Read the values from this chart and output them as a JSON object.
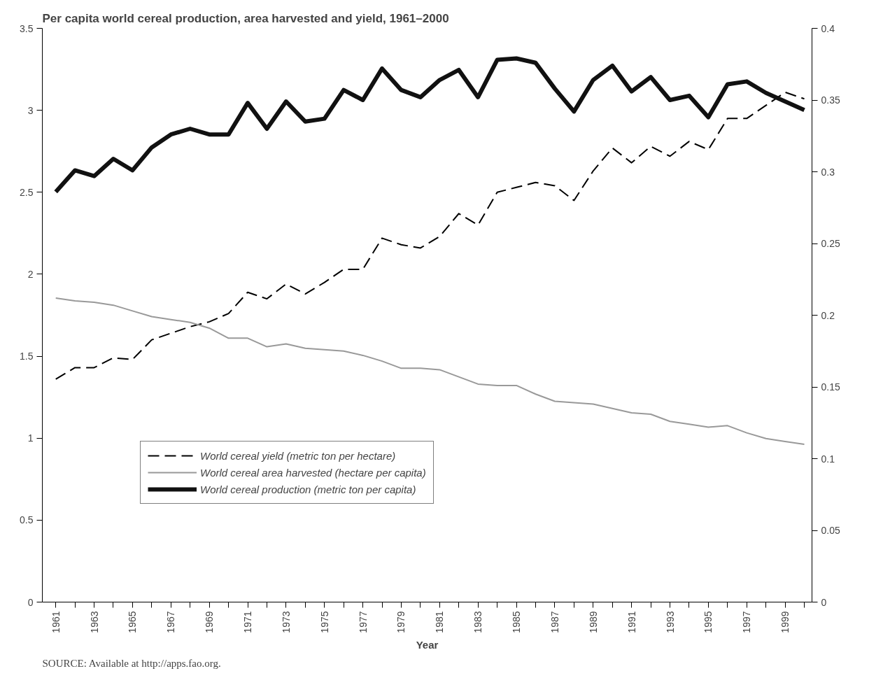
{
  "chart_data": {
    "type": "line",
    "title": "Per capita world cereal production, area harvested and yield, 1961–2000",
    "xlabel": "Year",
    "x": [
      1961,
      1962,
      1963,
      1964,
      1965,
      1966,
      1967,
      1968,
      1969,
      1970,
      1971,
      1972,
      1973,
      1974,
      1975,
      1976,
      1977,
      1978,
      1979,
      1980,
      1981,
      1982,
      1983,
      1984,
      1985,
      1986,
      1987,
      1988,
      1989,
      1990,
      1991,
      1992,
      1993,
      1994,
      1995,
      1996,
      1997,
      1998,
      1999,
      2000
    ],
    "series": [
      {
        "name": "World cereal yield (metric ton per hectare)",
        "color": "#000000",
        "line_style": "dashed",
        "values": [
          1.36,
          1.43,
          1.43,
          1.49,
          1.48,
          1.6,
          1.64,
          1.68,
          1.71,
          1.76,
          1.89,
          1.85,
          1.94,
          1.88,
          1.95,
          2.03,
          2.03,
          2.22,
          2.18,
          2.16,
          2.23,
          2.37,
          2.3,
          2.5,
          2.53,
          2.56,
          2.54,
          2.45,
          2.63,
          2.77,
          2.68,
          2.78,
          2.72,
          2.81,
          2.76,
          2.95,
          2.95,
          3.03,
          3.11,
          3.07
        ]
      },
      {
        "name": "World cereal area harvested (hectare per capita)",
        "color": "#999999",
        "line_style": "solid",
        "axis": "y2",
        "values": [
          0.212,
          0.21,
          0.209,
          0.207,
          0.203,
          0.199,
          0.197,
          0.195,
          0.191,
          0.184,
          0.184,
          0.178,
          0.18,
          0.177,
          0.176,
          0.175,
          0.172,
          0.168,
          0.163,
          0.163,
          0.162,
          0.157,
          0.152,
          0.151,
          0.151,
          0.145,
          0.14,
          0.139,
          0.138,
          0.135,
          0.132,
          0.131,
          0.126,
          0.124,
          0.122,
          0.123,
          0.118,
          0.114,
          0.112,
          0.11
        ]
      },
      {
        "name": "World cereal production (metric ton per capita)",
        "color": "#111111",
        "line_style": "solid",
        "axis": "y2",
        "values": [
          0.286,
          0.301,
          0.297,
          0.309,
          0.301,
          0.317,
          0.326,
          0.33,
          0.326,
          0.326,
          0.348,
          0.33,
          0.349,
          0.335,
          0.337,
          0.357,
          0.35,
          0.372,
          0.357,
          0.352,
          0.364,
          0.371,
          0.352,
          0.378,
          0.379,
          0.376,
          0.358,
          0.342,
          0.364,
          0.374,
          0.356,
          0.366,
          0.35,
          0.353,
          0.338,
          0.361,
          0.363,
          0.355,
          0.349,
          0.343
        ]
      }
    ],
    "xlim": [
      1960.3,
      2000.4
    ],
    "xticks": [
      1961,
      {
        "value": 1962,
        "label": null
      },
      1963,
      {
        "value": 1964,
        "label": null
      },
      1965,
      {
        "value": 1966,
        "label": null
      },
      1967,
      {
        "value": 1968,
        "label": null
      },
      1969,
      {
        "value": 1970,
        "label": null
      },
      1971,
      {
        "value": 1972,
        "label": null
      },
      1973,
      {
        "value": 1974,
        "label": null
      },
      1975,
      {
        "value": 1976,
        "label": null
      },
      1977,
      {
        "value": 1978,
        "label": null
      },
      1979,
      {
        "value": 1980,
        "label": null
      },
      1981,
      {
        "value": 1982,
        "label": null
      },
      1983,
      {
        "value": 1984,
        "label": null
      },
      1985,
      {
        "value": 1986,
        "label": null
      },
      1987,
      {
        "value": 1988,
        "label": null
      },
      1989,
      {
        "value": 1990,
        "label": null
      },
      1991,
      {
        "value": 1992,
        "label": null
      },
      1993,
      {
        "value": 1994,
        "label": null
      },
      1995,
      {
        "value": 1996,
        "label": null
      },
      1997,
      {
        "value": 1998,
        "label": null
      },
      1999,
      {
        "value": 2000,
        "label": null
      }
    ],
    "ylim": [
      0,
      3.5
    ],
    "yticks": [
      0,
      0.5,
      1,
      1.5,
      2,
      2.5,
      3,
      3.5
    ],
    "y2lim": [
      0,
      0.4
    ],
    "y2ticks": [
      0,
      0.05,
      0.1,
      0.15,
      0.2,
      0.25,
      0.3,
      0.35,
      0.4
    ],
    "grid": false,
    "legend": "bottom left",
    "annotations": [
      "SOURCE: Available at http://apps.fao.org."
    ]
  }
}
